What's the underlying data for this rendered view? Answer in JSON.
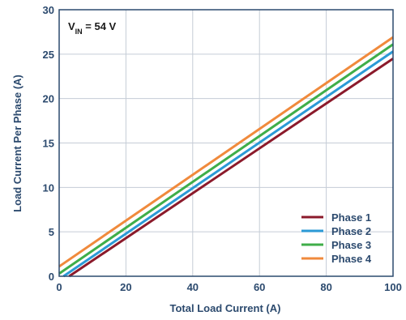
{
  "chart_data": {
    "type": "line",
    "xlabel": "Total Load Current (A)",
    "ylabel": "Load Current Per Phase (A)",
    "xlim": [
      0,
      100
    ],
    "ylim": [
      0,
      30
    ],
    "xticks": [
      "0",
      "20",
      "40",
      "60",
      "80",
      "100"
    ],
    "yticks": [
      "0",
      "5",
      "10",
      "15",
      "20",
      "25",
      "30"
    ],
    "grid": true,
    "legend_position": "bottom-right",
    "annotation": {
      "prefix": "V",
      "subscript": "IN",
      "suffix": " = 54 V"
    },
    "series": [
      {
        "name": "Phase 1",
        "color": "#8b1a2b",
        "x": [
          3,
          100
        ],
        "y": [
          0,
          24.5
        ]
      },
      {
        "name": "Phase 2",
        "color": "#2b9ad6",
        "x": [
          1.3,
          100
        ],
        "y": [
          0,
          25.3
        ]
      },
      {
        "name": "Phase 3",
        "color": "#3fae49",
        "x": [
          0,
          100
        ],
        "y": [
          0.3,
          26.1
        ]
      },
      {
        "name": "Phase 4",
        "color": "#f08a3c",
        "x": [
          0,
          100
        ],
        "y": [
          1.1,
          26.9
        ]
      }
    ]
  }
}
